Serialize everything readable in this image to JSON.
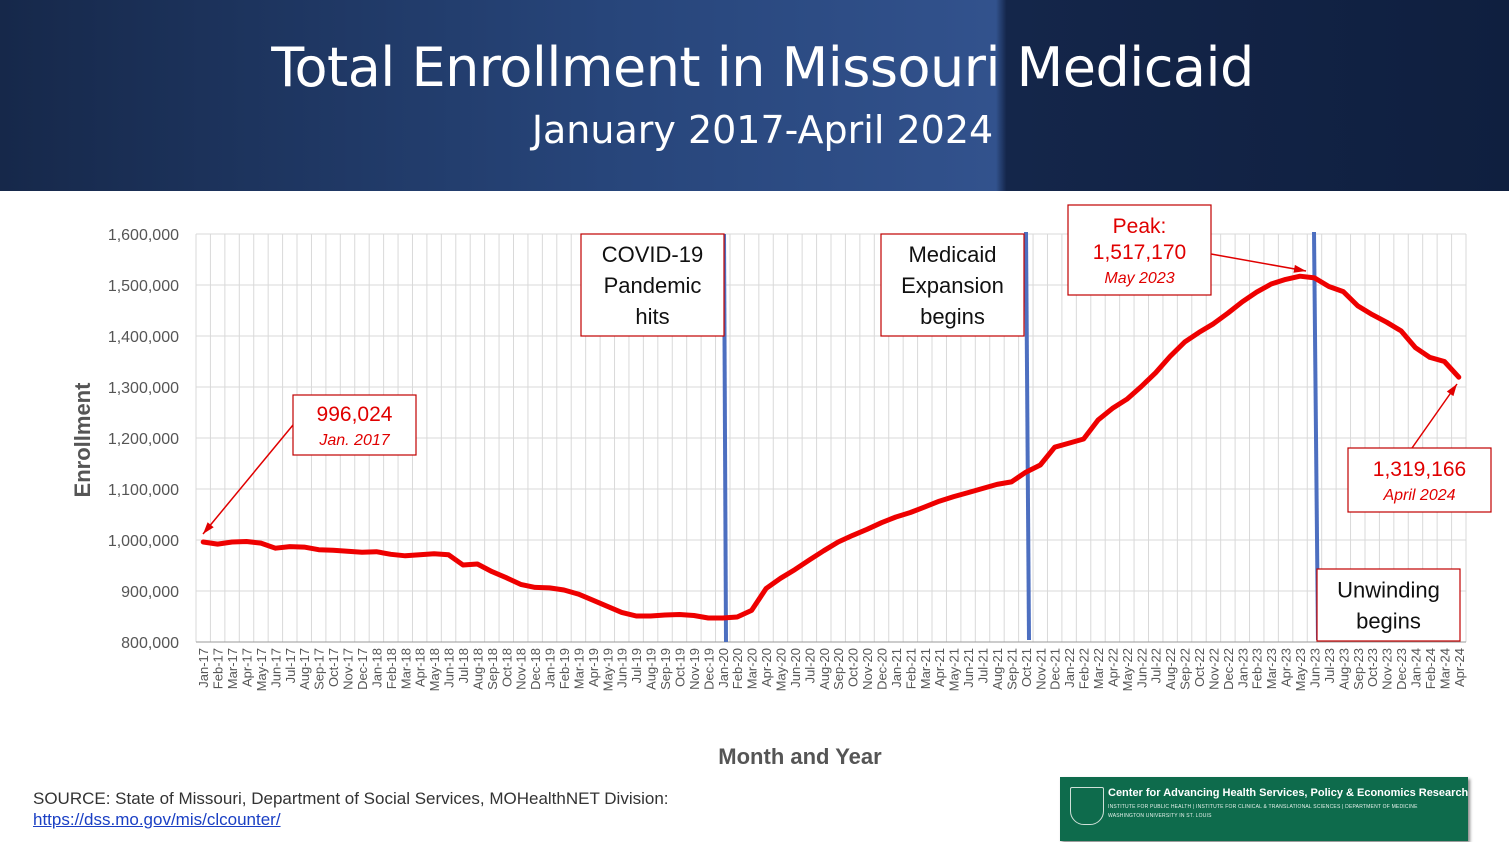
{
  "slide": {
    "title": "Total Enrollment in Missouri Medicaid",
    "subtitle": "January 2017-April 2024"
  },
  "chart_data": {
    "type": "line",
    "xlabel": "Month and Year",
    "ylabel": "Enrollment",
    "ylim": [
      800000,
      1600000
    ],
    "yticks": [
      800000,
      900000,
      1000000,
      1100000,
      1200000,
      1300000,
      1400000,
      1500000,
      1600000
    ],
    "ytick_labels": [
      "800,000",
      "900,000",
      "1,000,000",
      "1,100,000",
      "1,200,000",
      "1,300,000",
      "1,400,000",
      "1,500,000",
      "1,600,000"
    ],
    "grid": true,
    "line_color": "#ee0000",
    "categories": [
      "Jan-17",
      "Feb-17",
      "Mar-17",
      "Apr-17",
      "May-17",
      "Jun-17",
      "Jul-17",
      "Aug-17",
      "Sep-17",
      "Oct-17",
      "Nov-17",
      "Dec-17",
      "Jan-18",
      "Feb-18",
      "Mar-18",
      "Apr-18",
      "May-18",
      "Jun-18",
      "Jul-18",
      "Aug-18",
      "Sep-18",
      "Oct-18",
      "Nov-18",
      "Dec-18",
      "Jan-19",
      "Feb-19",
      "Mar-19",
      "Apr-19",
      "May-19",
      "Jun-19",
      "Jul-19",
      "Aug-19",
      "Sep-19",
      "Oct-19",
      "Nov-19",
      "Dec-19",
      "Jan-20",
      "Feb-20",
      "Mar-20",
      "Apr-20",
      "May-20",
      "Jun-20",
      "Jul-20",
      "Aug-20",
      "Sep-20",
      "Oct-20",
      "Nov-20",
      "Dec-20",
      "Jan-21",
      "Feb-21",
      "Mar-21",
      "Apr-21",
      "May-21",
      "Jun-21",
      "Jul-21",
      "Aug-21",
      "Sep-21",
      "Oct-21",
      "Nov-21",
      "Dec-21",
      "Jan-22",
      "Feb-22",
      "Mar-22",
      "Apr-22",
      "May-22",
      "Jun-22",
      "Jul-22",
      "Aug-22",
      "Sep-22",
      "Oct-22",
      "Nov-22",
      "Dec-22",
      "Jan-23",
      "Feb-23",
      "Mar-23",
      "Apr-23",
      "May-23",
      "Jun-23",
      "Jul-23",
      "Aug-23",
      "Sep-23",
      "Oct-23",
      "Nov-23",
      "Dec-23",
      "Jan-24",
      "Feb-24",
      "Mar-24",
      "Apr-24"
    ],
    "values": [
      996024,
      992000,
      996000,
      997000,
      994000,
      984000,
      987000,
      986000,
      981000,
      980000,
      978000,
      976000,
      977000,
      972000,
      969000,
      971000,
      973000,
      971000,
      951000,
      953000,
      938000,
      926000,
      913000,
      907000,
      906000,
      902000,
      894000,
      882000,
      870000,
      858000,
      851000,
      851000,
      853000,
      854000,
      852000,
      847000,
      847000,
      849000,
      862000,
      905000,
      925000,
      942000,
      961000,
      979000,
      996000,
      1009000,
      1021000,
      1034000,
      1045000,
      1054000,
      1065000,
      1076000,
      1085000,
      1093000,
      1101000,
      1109000,
      1114000,
      1133000,
      1147000,
      1182000,
      1190000,
      1198000,
      1235000,
      1258000,
      1276000,
      1301000,
      1328000,
      1360000,
      1388000,
      1407000,
      1424000,
      1445000,
      1467000,
      1486000,
      1502000,
      1511000,
      1517170,
      1514000,
      1497000,
      1487000,
      1459000,
      1442000,
      1427000,
      1410000,
      1377000,
      1358000,
      1350000,
      1319166
    ],
    "event_lines": [
      {
        "label_lines": [
          "COVID-19",
          "Pandemic",
          "hits"
        ],
        "after": "Jan-20"
      },
      {
        "label_lines": [
          "Medicaid",
          "Expansion",
          "begins"
        ],
        "after": "Sep-21"
      },
      {
        "label_lines": [
          "Unwinding",
          "begins"
        ],
        "after": "May-23"
      }
    ],
    "annotations": [
      {
        "value": "996,024",
        "date": "Jan. 2017",
        "at": "Jan-17"
      },
      {
        "prefix": "Peak:",
        "value": "1,517,170",
        "date": "May 2023",
        "at": "May-23"
      },
      {
        "value": "1,319,166",
        "date": "April 2024",
        "at": "Apr-24"
      }
    ]
  },
  "footer": {
    "source_text": "SOURCE: State of Missouri, Department of Social Services, MOHealthNET Division:",
    "source_link": "https://dss.mo.gov/mis/clcounter/",
    "logo_title": "Center for Advancing Health Services, Policy & Economics Research",
    "logo_line1": "INSTITUTE FOR PUBLIC HEALTH | INSTITUTE FOR CLINICAL & TRANSLATIONAL SCIENCES | DEPARTMENT OF MEDICINE",
    "logo_line2": "WASHINGTON UNIVERSITY IN ST. LOUIS"
  }
}
